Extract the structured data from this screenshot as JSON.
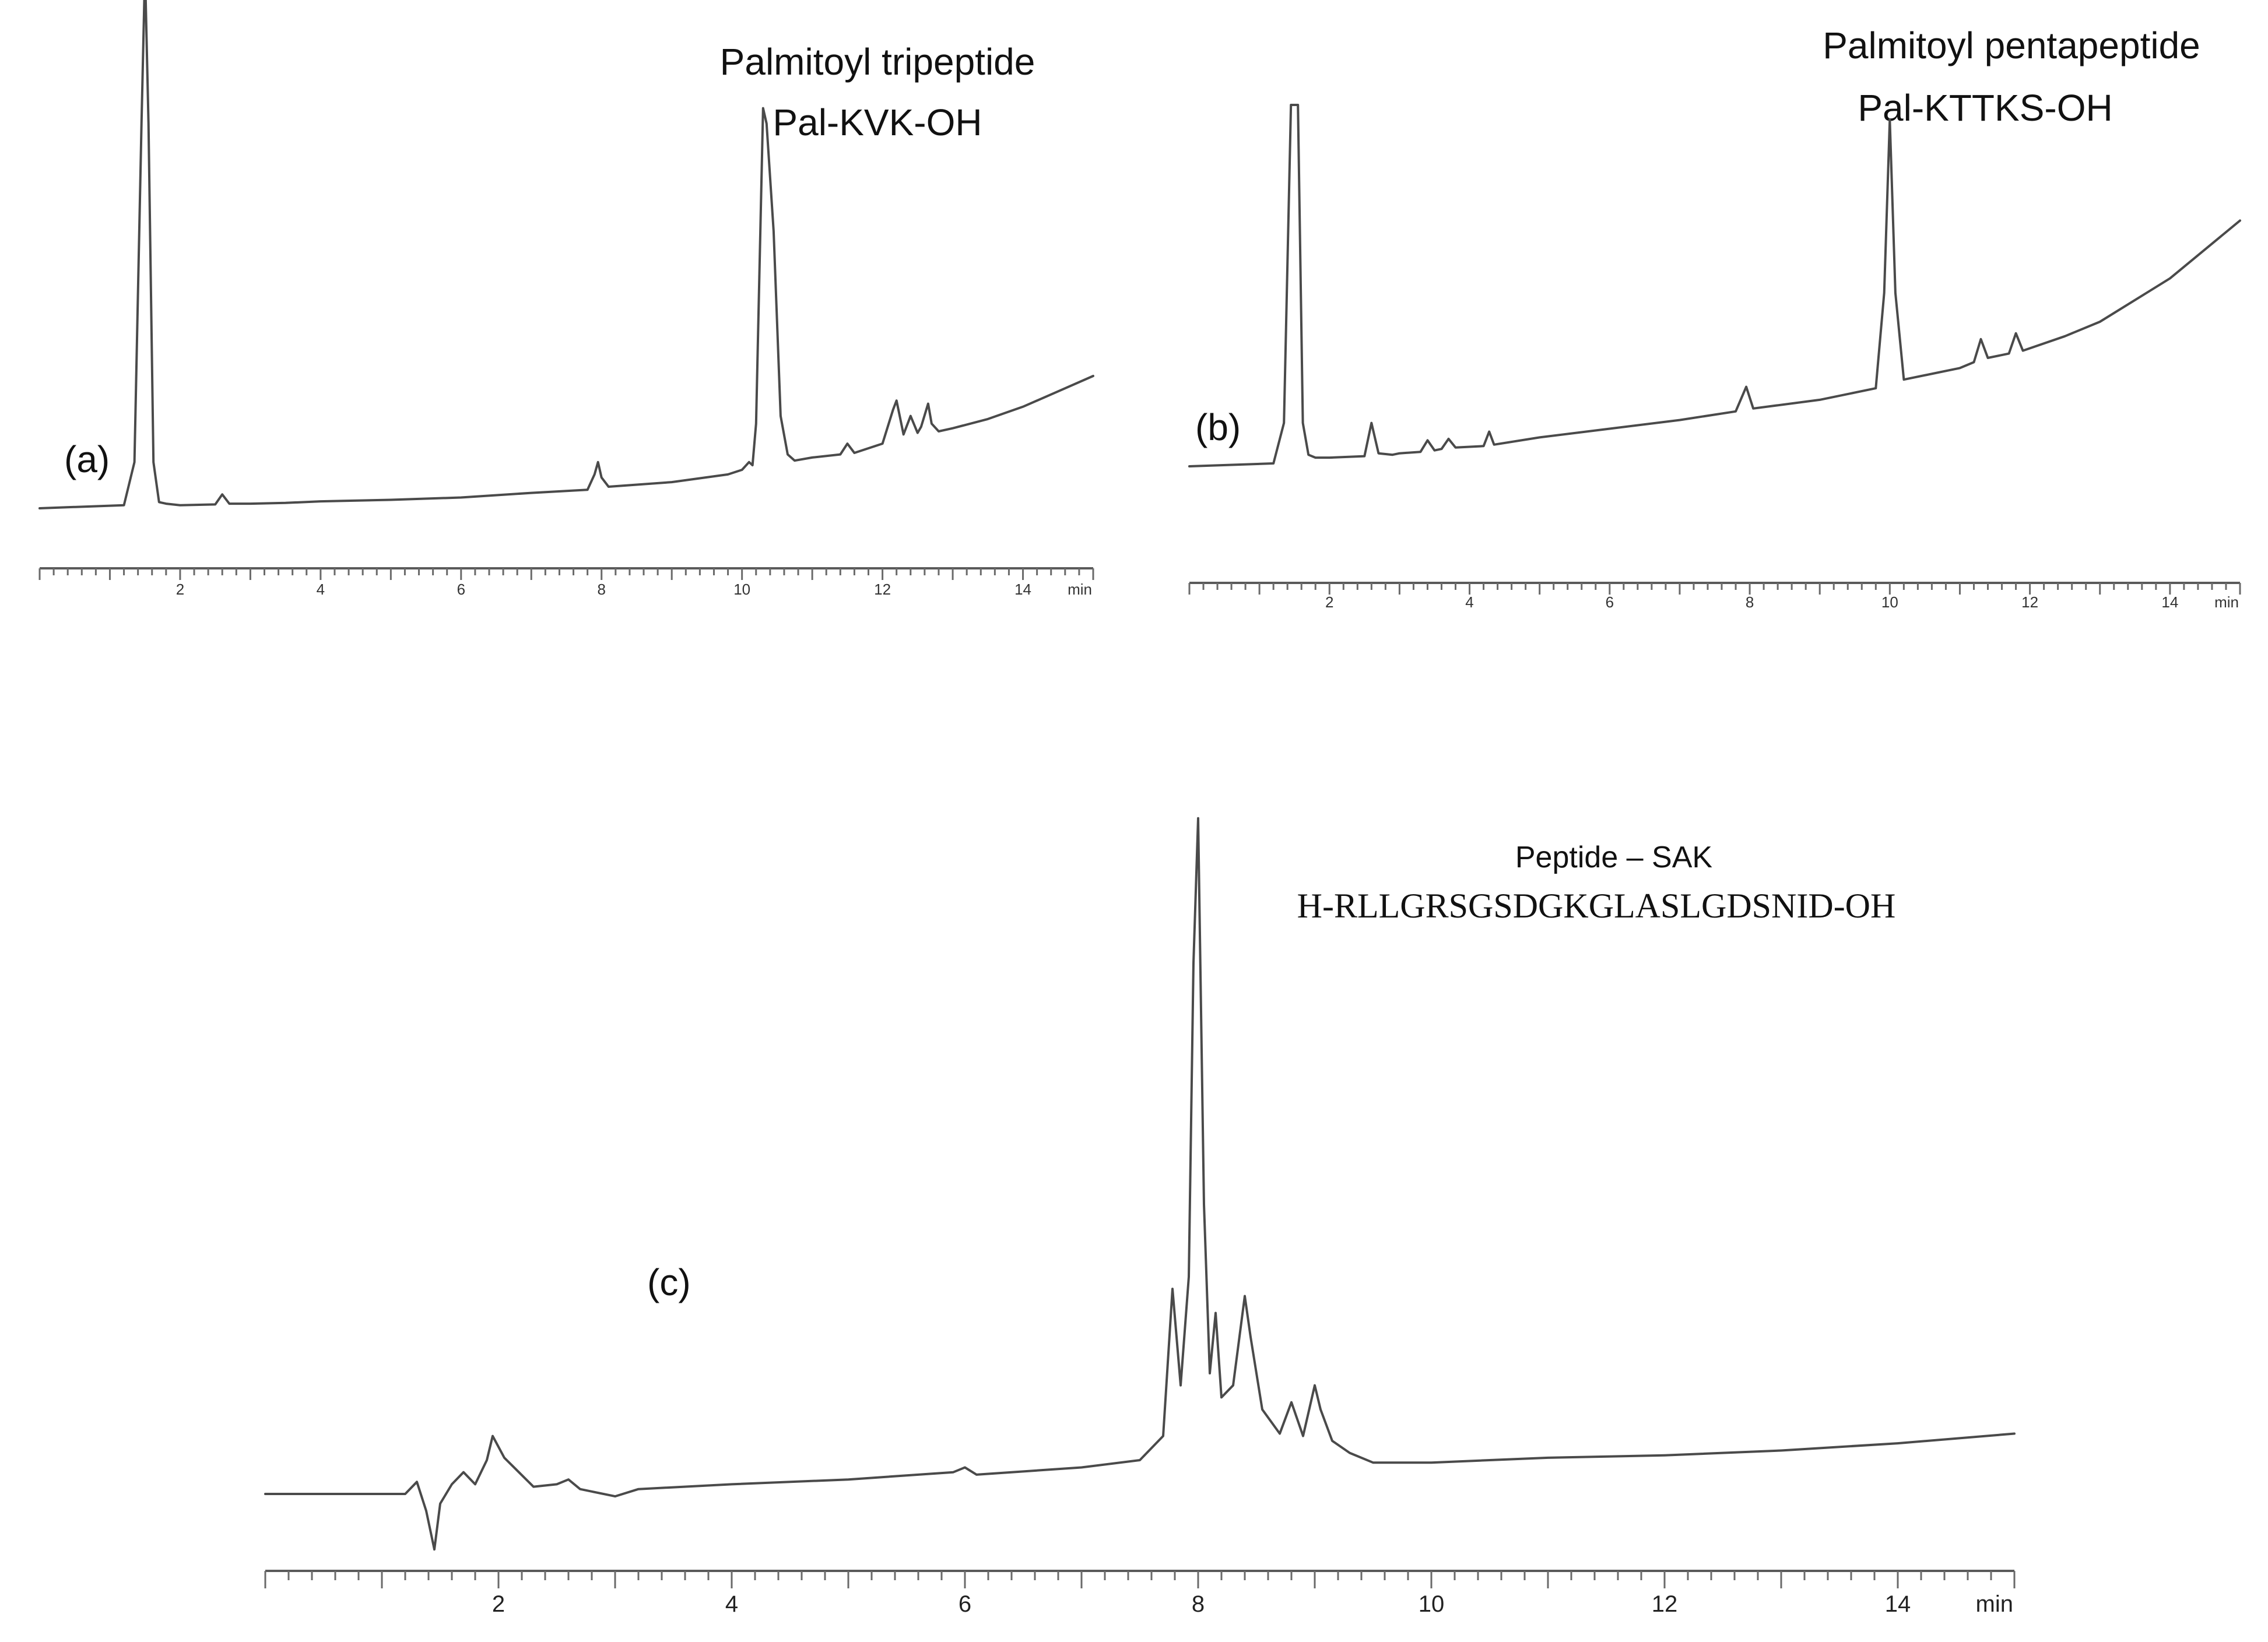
{
  "chart_data": [
    {
      "type": "line",
      "panel": "(a)",
      "xlabel": "min",
      "xlim": [
        0,
        15
      ],
      "xticks": [
        2,
        4,
        6,
        8,
        10,
        12,
        14
      ],
      "annotations": [
        "Palmitoyl tripeptide",
        "Pal-KVK-OH"
      ],
      "series": [
        {
          "x": [
            0,
            1.2,
            1.35,
            1.45,
            1.5,
            1.55,
            1.62,
            1.7,
            1.8,
            2.0,
            2.5,
            2.6,
            2.7,
            2.9,
            3.0,
            3.5,
            4.0,
            5.0,
            6.0,
            7.0,
            7.8,
            7.9,
            7.95,
            8.0,
            8.1,
            9.0,
            9.8,
            10.0,
            10.1,
            10.15,
            10.2,
            10.3,
            10.35,
            10.45,
            10.55,
            10.65,
            10.75,
            11.0,
            11.4,
            11.5,
            11.6,
            12.0,
            12.15,
            12.2,
            12.3,
            12.4,
            12.5,
            12.55,
            12.65,
            12.7,
            12.8,
            13.0,
            13.5,
            14.0,
            14.5,
            15.0
          ],
          "y": [
            0,
            0.2,
            3,
            25,
            35,
            25,
            3,
            0.4,
            0.3,
            0.2,
            0.25,
            0.9,
            0.3,
            0.3,
            0.3,
            0.35,
            0.45,
            0.55,
            0.7,
            1.0,
            1.2,
            2.2,
            3.0,
            2.0,
            1.4,
            1.7,
            2.2,
            2.5,
            3.0,
            2.8,
            5.5,
            26,
            25,
            18,
            6,
            3.5,
            3.1,
            3.3,
            3.5,
            4.2,
            3.6,
            4.2,
            6.4,
            7.0,
            4.8,
            6.0,
            4.9,
            5.3,
            6.8,
            5.5,
            5.0,
            5.2,
            5.8,
            6.6,
            7.6,
            8.6
          ]
        }
      ]
    },
    {
      "type": "line",
      "panel": "(b)",
      "xlabel": "min",
      "xlim": [
        0,
        15
      ],
      "xticks": [
        2,
        4,
        6,
        8,
        10,
        12,
        14
      ],
      "annotations": [
        "Palmitoyl pentapeptide",
        "Pal-KTTKS-OH"
      ],
      "series": [
        {
          "x": [
            0,
            1.2,
            1.35,
            1.45,
            1.5,
            1.55,
            1.62,
            1.7,
            1.8,
            2.0,
            2.5,
            2.6,
            2.7,
            2.9,
            3.0,
            3.3,
            3.4,
            3.5,
            3.6,
            3.7,
            3.8,
            4.2,
            4.28,
            4.35,
            5.0,
            6.0,
            7.0,
            7.8,
            7.95,
            8.05,
            9.0,
            9.8,
            9.92,
            10.0,
            10.08,
            10.2,
            11.0,
            11.2,
            11.3,
            11.4,
            11.7,
            11.8,
            11.9,
            12.5,
            13.0,
            14.0,
            15.0
          ],
          "y": [
            0,
            0.2,
            3,
            25,
            25,
            25,
            3,
            0.8,
            0.6,
            0.6,
            0.7,
            3.0,
            0.9,
            0.8,
            0.9,
            1.0,
            1.8,
            1.1,
            1.2,
            1.9,
            1.3,
            1.4,
            2.4,
            1.5,
            2.0,
            2.6,
            3.2,
            3.8,
            5.5,
            4.0,
            4.6,
            5.4,
            12,
            24,
            12,
            6.0,
            6.8,
            7.2,
            8.8,
            7.5,
            7.8,
            9.2,
            8.0,
            9.0,
            10.0,
            13.0,
            17.0
          ]
        }
      ]
    },
    {
      "type": "line",
      "panel": "(c)",
      "xlabel": "min",
      "xlim": [
        0,
        15
      ],
      "xticks": [
        2,
        4,
        6,
        8,
        10,
        12,
        14
      ],
      "annotations": [
        "Peptide – SAK",
        "H-RLLGRSGSDGKGLASLGDSNID-OH"
      ],
      "series": [
        {
          "x": [
            0,
            1.2,
            1.3,
            1.38,
            1.45,
            1.5,
            1.6,
            1.7,
            1.8,
            1.9,
            1.95,
            2.05,
            2.3,
            2.5,
            2.6,
            2.7,
            3.0,
            3.2,
            4.0,
            5.0,
            5.9,
            6.0,
            6.1,
            7.0,
            7.5,
            7.7,
            7.78,
            7.85,
            7.92,
            7.96,
            8.0,
            8.05,
            8.1,
            8.15,
            8.2,
            8.3,
            8.4,
            8.45,
            8.55,
            8.7,
            8.8,
            8.9,
            9.0,
            9.05,
            9.15,
            9.3,
            9.5,
            10.0,
            11.0,
            12.0,
            13.0,
            14.0,
            15.0
          ],
          "y": [
            0,
            0,
            0.5,
            -0.7,
            -2.3,
            -0.4,
            0.4,
            0.9,
            0.4,
            1.4,
            2.4,
            1.5,
            0.3,
            0.4,
            0.6,
            0.2,
            -0.1,
            0.2,
            0.4,
            0.6,
            0.9,
            1.1,
            0.8,
            1.1,
            1.4,
            2.4,
            8.5,
            4.5,
            9.0,
            22,
            28,
            12,
            5.0,
            7.5,
            4.0,
            4.5,
            8.2,
            6.5,
            3.5,
            2.5,
            3.8,
            2.4,
            4.5,
            3.5,
            2.2,
            1.7,
            1.3,
            1.3,
            1.5,
            1.6,
            1.8,
            2.1,
            2.5
          ]
        }
      ]
    }
  ]
}
